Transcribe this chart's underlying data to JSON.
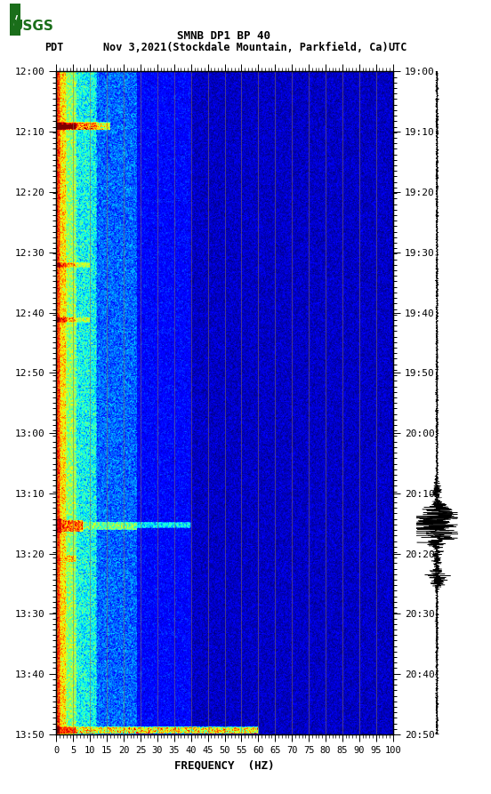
{
  "title_line1": "SMNB DP1 BP 40",
  "title_line2_pdt": "PDT  Nov 3,2021(Stockdale Mountain, Parkfield, Ca)      UTC",
  "left_times": [
    "12:00",
    "12:10",
    "12:20",
    "12:30",
    "12:40",
    "12:50",
    "13:00",
    "13:10",
    "13:20",
    "13:30",
    "13:40",
    "13:50"
  ],
  "right_times": [
    "19:00",
    "19:10",
    "19:20",
    "19:30",
    "19:40",
    "19:50",
    "20:00",
    "20:10",
    "20:20",
    "20:30",
    "20:40",
    "20:50"
  ],
  "freq_ticks": [
    0,
    5,
    10,
    15,
    20,
    25,
    30,
    35,
    40,
    45,
    50,
    55,
    60,
    65,
    70,
    75,
    80,
    85,
    90,
    95,
    100
  ],
  "xlabel": "FREQUENCY  (HZ)",
  "background": "#ffffff",
  "vline_color": "#8B7355"
}
